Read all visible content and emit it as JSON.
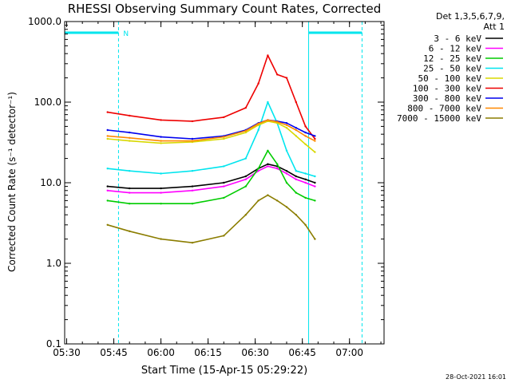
{
  "chart_data": {
    "type": "line",
    "title": "RHESSI Observing Summary Count Rates, Corrected",
    "xlabel": "Start Time (15-Apr-15 05:29:22)",
    "ylabel": "Corrected Count Rate (s⁻¹ detector⁻¹)",
    "yscale": "log",
    "ylim": [
      0.1,
      1000
    ],
    "xlim": [
      "05:29:22",
      "07:11:00"
    ],
    "x_ticks": [
      "05:30",
      "05:45",
      "06:00",
      "06:15",
      "06:30",
      "06:45",
      "07:00"
    ],
    "y_ticks": [
      "0.1",
      "1.0",
      "10.0",
      "100.0",
      "1000.0"
    ],
    "legend_header": [
      "Det 1,3,5,6,7,9,",
      "Att 1"
    ],
    "legend_position": "right, outside plot",
    "timestamp": "28-Oct-2021 16:01",
    "night_marker": {
      "label": "N",
      "color": "#00e5ee",
      "night_intervals": [
        [
          "05:29:22",
          "05:46:30"
        ],
        [
          "06:47:00",
          "07:04:00"
        ]
      ]
    },
    "series": [
      {
        "name": "3 - 6 keV",
        "color": "#000000",
        "x": [
          "05:43",
          "05:50",
          "06:00",
          "06:10",
          "06:20",
          "06:27",
          "06:31",
          "06:34",
          "06:37",
          "06:40",
          "06:43",
          "06:46",
          "06:49"
        ],
        "values": [
          9,
          8.5,
          8.5,
          9,
          10,
          12,
          15,
          17,
          16,
          14,
          12,
          11,
          10
        ]
      },
      {
        "name": "6 - 12 keV",
        "color": "#ff00ff",
        "x": [
          "05:43",
          "05:50",
          "06:00",
          "06:10",
          "06:20",
          "06:27",
          "06:31",
          "06:34",
          "06:37",
          "06:40",
          "06:43",
          "06:46",
          "06:49"
        ],
        "values": [
          8,
          7.5,
          7.5,
          8,
          9,
          11,
          14,
          16,
          15,
          13,
          11,
          10,
          9
        ]
      },
      {
        "name": "12 - 25 keV",
        "color": "#00cc00",
        "x": [
          "05:43",
          "05:50",
          "06:00",
          "06:10",
          "06:20",
          "06:27",
          "06:31",
          "06:34",
          "06:37",
          "06:40",
          "06:43",
          "06:46",
          "06:49"
        ],
        "values": [
          6,
          5.5,
          5.5,
          5.5,
          6.5,
          9,
          15,
          25,
          17,
          10,
          7.5,
          6.5,
          6
        ]
      },
      {
        "name": "25 - 50 keV",
        "color": "#00e5ee",
        "x": [
          "05:43",
          "05:50",
          "06:00",
          "06:10",
          "06:20",
          "06:27",
          "06:31",
          "06:34",
          "06:37",
          "06:40",
          "06:43",
          "06:46",
          "06:49"
        ],
        "values": [
          15,
          14,
          13,
          14,
          16,
          20,
          45,
          100,
          55,
          25,
          14,
          13,
          12
        ]
      },
      {
        "name": "50 - 100 keV",
        "color": "#d8d800",
        "x": [
          "05:43",
          "05:50",
          "06:00",
          "06:10",
          "06:20",
          "06:27",
          "06:31",
          "06:34",
          "06:37",
          "06:40",
          "06:43",
          "06:46",
          "06:49"
        ],
        "values": [
          35,
          33,
          31,
          32,
          35,
          42,
          52,
          58,
          55,
          48,
          38,
          30,
          24
        ]
      },
      {
        "name": "100 - 300 keV",
        "color": "#ee0000",
        "x": [
          "05:43",
          "05:50",
          "06:00",
          "06:10",
          "06:20",
          "06:27",
          "06:31",
          "06:34",
          "06:37",
          "06:40",
          "06:43",
          "06:46",
          "06:49"
        ],
        "values": [
          75,
          68,
          60,
          58,
          65,
          85,
          170,
          380,
          220,
          200,
          100,
          50,
          35
        ]
      },
      {
        "name": "300 - 800 keV",
        "color": "#0000ee",
        "x": [
          "05:43",
          "05:50",
          "06:00",
          "06:10",
          "06:20",
          "06:27",
          "06:31",
          "06:34",
          "06:37",
          "06:40",
          "06:43",
          "06:46",
          "06:49"
        ],
        "values": [
          45,
          42,
          37,
          35,
          38,
          45,
          55,
          60,
          58,
          55,
          48,
          42,
          38
        ]
      },
      {
        "name": "800 - 7000 keV",
        "color": "#ff8800",
        "x": [
          "05:43",
          "05:50",
          "06:00",
          "06:10",
          "06:20",
          "06:27",
          "06:31",
          "06:34",
          "06:37",
          "06:40",
          "06:43",
          "06:46",
          "06:49"
        ],
        "values": [
          38,
          36,
          33,
          33,
          37,
          44,
          54,
          60,
          57,
          52,
          45,
          38,
          33
        ]
      },
      {
        "name": "7000 - 15000 keV",
        "color": "#8b7d00",
        "x": [
          "05:43",
          "05:50",
          "06:00",
          "06:10",
          "06:20",
          "06:27",
          "06:31",
          "06:34",
          "06:37",
          "06:40",
          "06:43",
          "06:46",
          "06:49"
        ],
        "values": [
          3,
          2.5,
          2,
          1.8,
          2.2,
          4,
          6,
          7,
          6,
          5,
          4,
          3,
          2
        ]
      }
    ]
  }
}
